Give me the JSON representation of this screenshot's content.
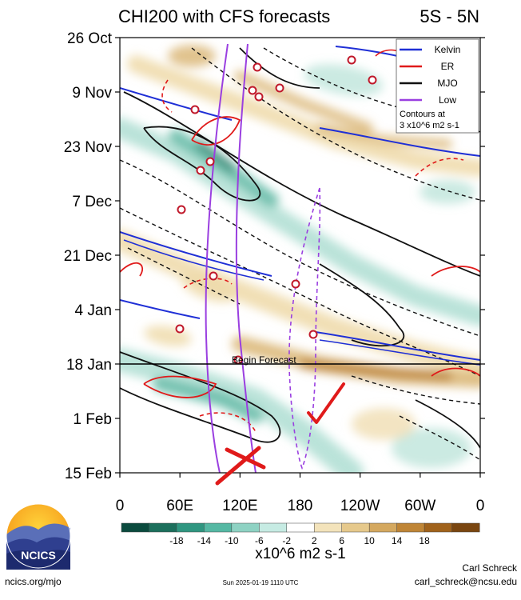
{
  "chart_data": {
    "type": "heatmap",
    "title": "CHI200 with CFS forecasts",
    "subtitle": "5S - 5N",
    "x_ticks": [
      "0",
      "60E",
      "120E",
      "180",
      "120W",
      "60W",
      "0"
    ],
    "x_tick_values": [
      0,
      60,
      120,
      180,
      240,
      300,
      360
    ],
    "xlim": [
      0,
      360
    ],
    "y_ticks": [
      "26 Oct",
      "9 Nov",
      "23 Nov",
      "7 Dec",
      "21 Dec",
      "4 Jan",
      "18 Jan",
      "1 Feb",
      "15 Feb"
    ],
    "y_tick_days": [
      0,
      14,
      28,
      42,
      56,
      70,
      84,
      98,
      112
    ],
    "ylim": [
      0,
      112
    ],
    "forecast_start_day": 84,
    "annotation": "Begin Forecast",
    "legend": {
      "placement": "top-right",
      "entries": [
        {
          "label": "Kelvin",
          "color": "#1f2fd6"
        },
        {
          "label": "ER",
          "color": "#e01a1a"
        },
        {
          "label": "MJO",
          "color": "#111111"
        },
        {
          "label": "Low",
          "color": "#9a3fe0"
        }
      ],
      "note_line1": "Contours at",
      "note_line2": "3 x10^6 m2 s-1"
    },
    "colorbar": {
      "ticks": [
        "-18",
        "-14",
        "-10",
        "-6",
        "-2",
        "2",
        "6",
        "10",
        "14",
        "18"
      ],
      "colors": [
        "#0b4b3e",
        "#1c6f5c",
        "#2f9680",
        "#55b8a3",
        "#8ed2c3",
        "#c6ebe3",
        "#ffffff",
        "#f3e3bb",
        "#e6c98c",
        "#d4a85f",
        "#bf8536",
        "#a0621b",
        "#7a4610"
      ],
      "label": "x10^6 m2 s-1"
    },
    "features": [
      {
        "kind": "mjo",
        "cells": [
          {
            "name": "convective-suppressed",
            "lon": 150,
            "day": 45,
            "sign": 1,
            "strength": 10
          },
          {
            "name": "convective-enhanced",
            "lon": 85,
            "day": 30,
            "sign": -1,
            "strength": 14
          }
        ]
      }
    ]
  },
  "footer": {
    "org_logo_text": "NCICS",
    "url": "ncics.org/mjo",
    "timestamp": "Sun 2025-01-19 1110 UTC",
    "author": "Carl Schreck",
    "email": "carl_schreck@ncsu.edu"
  },
  "annotations": {
    "check_mark_color": "#e01a1a",
    "cross_mark_color": "#e01a1a"
  }
}
